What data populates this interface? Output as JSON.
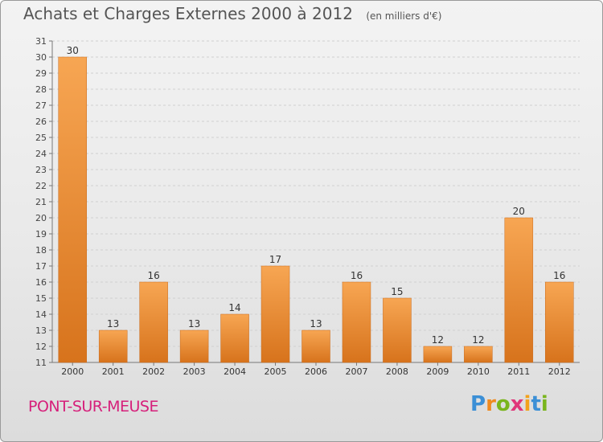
{
  "header": {
    "title": "Achats et Charges Externes 2000 à 2012",
    "subtitle": "(en milliers d'€)"
  },
  "footer": {
    "place": "PONT-SUR-MEUSE",
    "logo_letters": [
      "P",
      "r",
      "o",
      "x",
      "i",
      "t",
      "i"
    ],
    "logo_colors": [
      "#3b8fd6",
      "#ef8a1f",
      "#7ab51d",
      "#e0357a",
      "#f3a21b",
      "#3b8fd6",
      "#7ab51d"
    ]
  },
  "chart_data": {
    "type": "bar",
    "title": "Achats et Charges Externes 2000 à 2012",
    "subtitle": "(en milliers d'€)",
    "categories": [
      "2000",
      "2001",
      "2002",
      "2003",
      "2004",
      "2005",
      "2006",
      "2007",
      "2008",
      "2009",
      "2010",
      "2011",
      "2012"
    ],
    "values": [
      30,
      13,
      16,
      13,
      14,
      17,
      13,
      16,
      15,
      12,
      12,
      20,
      16
    ],
    "ylim": [
      11,
      31
    ],
    "yticks": [
      11,
      12,
      13,
      14,
      15,
      16,
      17,
      18,
      19,
      20,
      21,
      22,
      23,
      24,
      25,
      26,
      27,
      28,
      29,
      30,
      31
    ],
    "grid": true,
    "bar_color_top": "#f7a653",
    "bar_color_bottom": "#d7731c"
  }
}
